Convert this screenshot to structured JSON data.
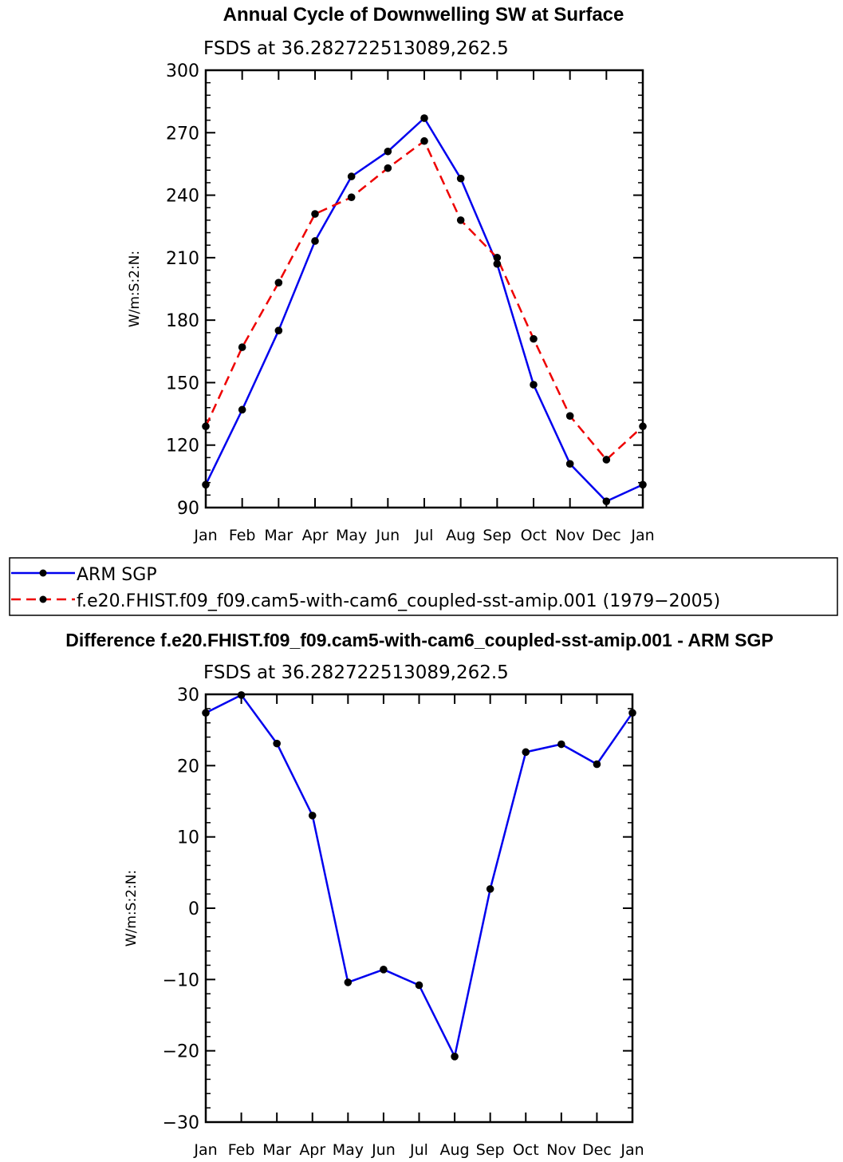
{
  "chart_data": [
    {
      "type": "line",
      "title": "Annual Cycle of Downwelling SW at Surface",
      "subtitle": "FSDS at 36.282722513089,262.5",
      "ylabel": "W/m:S:2:N:",
      "ylim": [
        90,
        300
      ],
      "yticks": [
        90,
        120,
        150,
        180,
        210,
        240,
        270,
        300
      ],
      "categories": [
        "Jan",
        "Feb",
        "Mar",
        "Apr",
        "May",
        "Jun",
        "Jul",
        "Aug",
        "Sep",
        "Oct",
        "Nov",
        "Dec",
        "Jan"
      ],
      "series": [
        {
          "name": "ARM SGP",
          "color": "#0000ee",
          "dash": "solid",
          "values": [
            101,
            137,
            175,
            218,
            249,
            261,
            277,
            248,
            207,
            149,
            111,
            93,
            101
          ]
        },
        {
          "name": "f.e20.FHIST.f09_f09.cam5-with-cam6_coupled-sst-amip.001 (1979-2005)",
          "color": "#ee0000",
          "dash": "dashed",
          "values": [
            129,
            167,
            198,
            231,
            239,
            253,
            266,
            228,
            210,
            171,
            134,
            113,
            129
          ]
        }
      ],
      "legend": {
        "placement": "below",
        "entries": [
          "ARM SGP",
          "f.e20.FHIST.f09_f09.cam5-with-cam6_coupled-sst-amip.001 (1979−2005)"
        ]
      },
      "grid": false
    },
    {
      "type": "line",
      "title": "Difference f.e20.FHIST.f09_f09.cam5-with-cam6_coupled-sst-amip.001 - ARM SGP",
      "subtitle": "FSDS at 36.282722513089,262.5",
      "ylabel": "W/m:S:2:N:",
      "ylim": [
        -30,
        30
      ],
      "yticks": [
        -30,
        -20,
        -10,
        0,
        10,
        20,
        30
      ],
      "categories": [
        "Jan",
        "Feb",
        "Mar",
        "Apr",
        "May",
        "Jun",
        "Jul",
        "Aug",
        "Sep",
        "Oct",
        "Nov",
        "Dec",
        "Jan"
      ],
      "series": [
        {
          "color": "#0000ee",
          "dash": "solid",
          "values": [
            27.4,
            29.9,
            23.1,
            13.0,
            -10.4,
            -8.6,
            -10.8,
            -20.8,
            2.7,
            21.9,
            23.0,
            20.2,
            27.4
          ]
        }
      ],
      "grid": false
    }
  ]
}
